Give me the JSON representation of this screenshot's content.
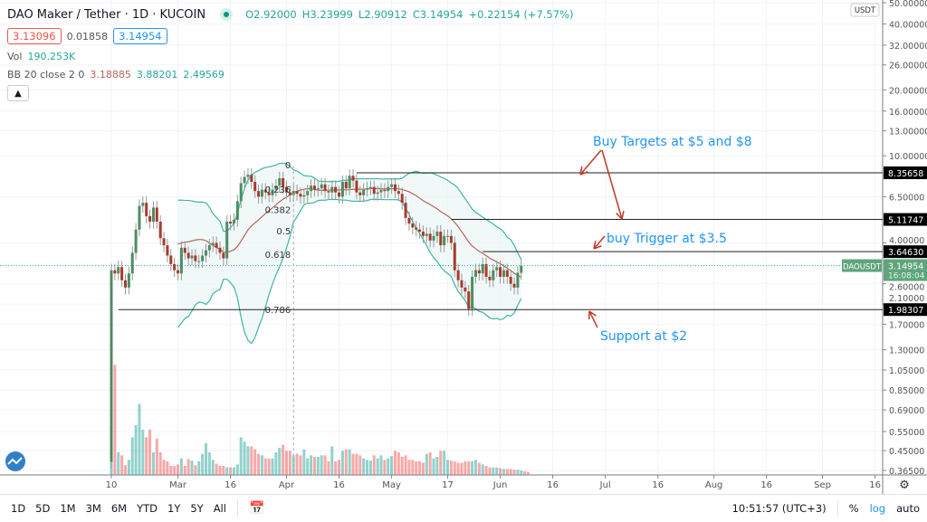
{
  "header": {
    "symbol_title": "DAO Maker / Tether · 1D · KUCOIN",
    "ohlc": {
      "open": "O2.92000",
      "high": "H3.23999",
      "low": "L2.90912",
      "close": "C3.14954",
      "change": "+0.22154 (+7.57%)"
    },
    "bid": "3.13096",
    "spread": "0.01858",
    "ask": "3.14954",
    "volume_label": "Vol",
    "volume_value": "190.253K",
    "bb_label": "BB 20 close 2 0",
    "bb_basis": "3.18885",
    "bb_upper": "3.88201",
    "bb_lower": "2.49569",
    "collapse_icon": "chevron-up-icon"
  },
  "price_axis": {
    "currency": "USDT",
    "ticks": [
      "50.00000",
      "40.00000",
      "32.00000",
      "26.00000",
      "20.00000",
      "16.00000",
      "13.00000",
      "10.00000",
      "6.50000",
      "4.00000",
      "2.60000",
      "2.10000",
      "1.70000",
      "1.30000",
      "1.05000",
      "0.85000",
      "0.69000",
      "0.55000",
      "0.45000",
      "0.36500"
    ],
    "scale": "log",
    "current_symbol": "DAOUSDT",
    "current_price": "3.14954",
    "countdown": "16:08:04",
    "settings_icon": "gear-icon"
  },
  "time_axis": {
    "labels": [
      {
        "text": "10",
        "day": 0
      },
      {
        "text": "Mar",
        "day": 19
      },
      {
        "text": "16",
        "day": 34
      },
      {
        "text": "Apr",
        "day": 50
      },
      {
        "text": "16",
        "day": 65
      },
      {
        "text": "May",
        "day": 80
      },
      {
        "text": "17",
        "day": 96
      },
      {
        "text": "Jun",
        "day": 111
      },
      {
        "text": "16",
        "day": 126
      },
      {
        "text": "Jul",
        "day": 141
      },
      {
        "text": "16",
        "day": 156
      },
      {
        "text": "Aug",
        "day": 172
      },
      {
        "text": "16",
        "day": 187
      },
      {
        "text": "Sep",
        "day": 203
      },
      {
        "text": "16",
        "day": 218
      }
    ]
  },
  "chart_data": {
    "type": "candlestick",
    "start_date": "Feb 10",
    "first_open": 0.4,
    "close": [
      3.0,
      2.9,
      3.1,
      2.7,
      2.5,
      2.9,
      3.6,
      4.6,
      5.9,
      6.1,
      5.3,
      5.0,
      5.8,
      5.0,
      4.2,
      3.9,
      3.5,
      3.2,
      3.0,
      2.9,
      3.8,
      3.6,
      3.4,
      3.5,
      3.3,
      3.3,
      3.5,
      3.7,
      3.9,
      4.0,
      3.8,
      3.6,
      3.4,
      5.0,
      4.9,
      5.1,
      6.2,
      7.5,
      8.0,
      8.2,
      7.6,
      6.9,
      6.5,
      7.0,
      6.8,
      6.6,
      7.0,
      7.3,
      7.9,
      7.2,
      6.8,
      6.6,
      6.9,
      6.7,
      6.5,
      6.6,
      6.9,
      7.3,
      7.0,
      7.1,
      7.4,
      6.9,
      6.8,
      7.2,
      6.8,
      6.5,
      7.6,
      7.1,
      8.1,
      7.7,
      6.8,
      6.6,
      7.0,
      7.1,
      7.2,
      6.7,
      6.8,
      7.0,
      6.9,
      7.2,
      7.4,
      6.9,
      6.7,
      6.1,
      5.2,
      4.9,
      4.7,
      4.6,
      4.5,
      4.3,
      4.4,
      4.1,
      4.3,
      4.5,
      3.9,
      4.3,
      4.3,
      4.0,
      3.0,
      2.7,
      2.5,
      2.4,
      2.0,
      2.8,
      3.0,
      2.9,
      3.2,
      2.8,
      2.7,
      3.0,
      3.1,
      2.8,
      3.0,
      2.8,
      2.6,
      2.5,
      2.92,
      3.14954
    ],
    "volume_k": [
      7800,
      7300,
      1500,
      1300,
      650,
      1000,
      2500,
      3300,
      4700,
      3000,
      2500,
      3000,
      1500,
      2400,
      1500,
      1000,
      900,
      600,
      600,
      700,
      1100,
      600,
      1050,
      950,
      650,
      900,
      1400,
      2100,
      1500,
      1000,
      750,
      600,
      600,
      500,
      500,
      500,
      700,
      2500,
      2200,
      1900,
      1900,
      1700,
      1400,
      1300,
      1100,
      1100,
      1100,
      1500,
      1800,
      2000,
      1600,
      1600,
      1300,
      1400,
      1300,
      1700,
      1100,
      1300,
      1200,
      1200,
      1300,
      1300,
      900,
      1900,
      900,
      1000,
      1600,
      1700,
      1700,
      1400,
      1400,
      1300,
      1100,
      1000,
      950,
      1300,
      1100,
      1300,
      1000,
      1100,
      1250,
      1600,
      1500,
      1200,
      1300,
      1000,
      1000,
      900,
      900,
      800,
      1400,
      1500,
      1100,
      1200,
      1600,
      1600,
      1000,
      950,
      900,
      800,
      800,
      900,
      900,
      900,
      1000,
      800,
      700,
      600,
      500,
      500,
      500,
      450,
      400,
      400,
      400,
      350,
      350,
      300,
      250,
      190.253
    ],
    "bollinger": {
      "period": 20,
      "stddev": 2
    },
    "ylim": [
      0.35,
      52
    ],
    "scale": "log",
    "grid": true,
    "colors": {
      "up": "#26a69a",
      "down": "#ef5350",
      "candle_up": "#4c8c62",
      "candle_down": "#a93a2a",
      "bb": "#3fb5a3",
      "bb_basis": "#b5645c",
      "bb_fill": "#e9f6f3"
    }
  },
  "drawings": {
    "fib_levels": [
      {
        "label": "0",
        "price": 9.0
      },
      {
        "label": "0.236",
        "price": 6.97
      },
      {
        "label": "0.382",
        "price": 5.63
      },
      {
        "label": "0.5",
        "price": 4.5
      },
      {
        "label": "0.618",
        "price": 3.52
      },
      {
        "label": "0.786",
        "price": 1.97
      }
    ],
    "horizontal_lines": [
      {
        "price": 8.35658,
        "label": "8.35658",
        "from_day": 70
      },
      {
        "price": 5.11747,
        "label": "5.11747",
        "from_day": 97
      },
      {
        "price": 3.6463,
        "label": "3.64630",
        "from_day": 106
      },
      {
        "price": 1.98307,
        "label": "1.98307",
        "from_day": 2
      }
    ],
    "vertical_dashed_day": 52,
    "annotations": {
      "targets": "Buy Targets at $5 and $8",
      "trigger": "buy Trigger at $3.5",
      "support": "Support at $2"
    },
    "annotation_color": "#2196f3",
    "arrow_color": "#c0392b"
  },
  "toolbar": {
    "ranges": [
      "1D",
      "5D",
      "1M",
      "3M",
      "6M",
      "YTD",
      "1Y",
      "5Y",
      "All"
    ],
    "compare_icon": "calendar-goto-icon",
    "clock": "10:51:57 (UTC+3)",
    "percent": "%",
    "log": "log",
    "auto": "auto"
  }
}
